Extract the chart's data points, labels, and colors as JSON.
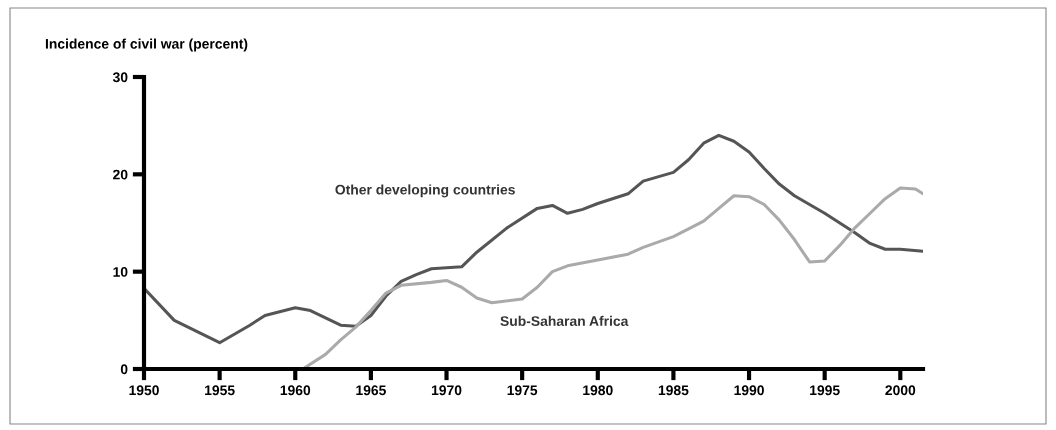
{
  "chart_data": {
    "type": "line",
    "title": "Incidence of civil war (percent)",
    "xlim": [
      1950,
      2001.5
    ],
    "xticks": [
      1950,
      1955,
      1960,
      1965,
      1970,
      1975,
      1980,
      1985,
      1990,
      1995,
      2000
    ],
    "ylim": [
      0,
      30
    ],
    "yticks": [
      0,
      10,
      20,
      30
    ],
    "grid": false,
    "legend": false,
    "marker": "none",
    "line_style": "solid",
    "series": [
      {
        "name": "Other developing countries",
        "color": "#555555",
        "x": [
          1950,
          1952,
          1955,
          1957,
          1958,
          1960,
          1961,
          1963,
          1964,
          1965,
          1966,
          1967,
          1968,
          1969,
          1971,
          1972,
          1974,
          1976,
          1977,
          1978,
          1979,
          1980,
          1982,
          1983,
          1985,
          1986,
          1987,
          1988,
          1989,
          1990,
          1991,
          1992,
          1993,
          1995,
          1996,
          1997,
          1998,
          1999,
          2000,
          2001.5
        ],
        "values": [
          8.3,
          5,
          2.7,
          4.5,
          5.5,
          6.3,
          6,
          4.5,
          4.4,
          5.5,
          7.5,
          9,
          9.7,
          10.3,
          10.5,
          12,
          14.5,
          16.5,
          16.8,
          16,
          16.4,
          17,
          18,
          19.3,
          20.2,
          21.5,
          23.2,
          24,
          23.4,
          22.3,
          20.6,
          19,
          17.8,
          16,
          15,
          14,
          12.9,
          12.3,
          12.3,
          12.1
        ]
      },
      {
        "name": "Sub-Saharan Africa",
        "color": "#aaaaaa",
        "x": [
          1950,
          1960.5,
          1962,
          1963,
          1964,
          1965,
          1966,
          1967,
          1969,
          1970,
          1971,
          1972,
          1973,
          1975,
          1976,
          1977,
          1978,
          1980,
          1982,
          1983,
          1985,
          1987,
          1988,
          1989,
          1990,
          1991,
          1992,
          1993,
          1994,
          1995,
          1996,
          1997,
          1998,
          1999,
          2000,
          2001,
          2001.5
        ],
        "values": [
          0,
          0,
          1.5,
          3,
          4.3,
          6,
          7.8,
          8.6,
          8.9,
          9.1,
          8.4,
          7.3,
          6.8,
          7.2,
          8.4,
          10,
          10.6,
          11.2,
          11.8,
          12.5,
          13.6,
          15.2,
          16.5,
          17.8,
          17.7,
          16.9,
          15.3,
          13.3,
          11,
          11.1,
          12.7,
          14.5,
          16,
          17.5,
          18.6,
          18.5,
          18
        ]
      }
    ]
  }
}
